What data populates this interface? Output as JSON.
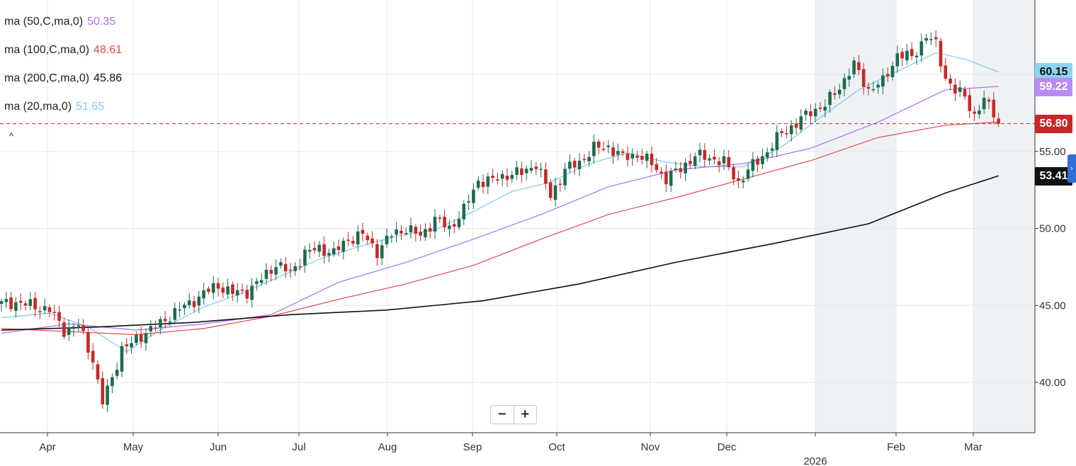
{
  "legend": [
    {
      "label": "ma (50,C,ma,0)",
      "value": "50.35",
      "color": "#a970f2"
    },
    {
      "label": "ma (100,C,ma,0)",
      "value": "48.61",
      "color": "#e8484e"
    },
    {
      "label": "ma (200,C,ma,0)",
      "value": "45.86",
      "color": "#111111"
    },
    {
      "label": "ma (20,ma,0)",
      "value": "51.65",
      "color": "#7ccbe9"
    }
  ],
  "collapse_glyph": "^",
  "zoom": {
    "minus": "−",
    "plus": "+"
  },
  "badges": [
    {
      "name": "ma20-badge",
      "value": "60.15",
      "bg": "#8fd3f0",
      "fg": "#111111"
    },
    {
      "name": "ma50-badge",
      "value": "59.22",
      "bg": "#b98af5",
      "fg": "#ffffff"
    },
    {
      "name": "last-price-badge",
      "value": "56.80",
      "bg": "#c62828",
      "fg": "#ffffff"
    },
    {
      "name": "ma200-badge",
      "value": "53.41",
      "bg": "#111111",
      "fg": "#ffffff"
    }
  ],
  "colors": {
    "up": "#1b6b4f",
    "down": "#c62828",
    "grid": "#e6e8eb",
    "shade": "#eef2f5",
    "price_line": "#c62828"
  },
  "chart_data": {
    "type": "candlestick",
    "x_tick_labels": [
      "Apr",
      "May",
      "Jun",
      "Jul",
      "Aug",
      "Sep",
      "Oct",
      "Nov",
      "Dec",
      "2026",
      "Feb",
      "Mar"
    ],
    "y_ticks": [
      40,
      45,
      50,
      55
    ],
    "y_tick_labels": [
      "40.00",
      "45.00",
      "50.00",
      "55.00"
    ],
    "ylim": [
      37,
      65
    ],
    "last_price": 56.8,
    "shaded_ranges": [
      [
        "Jan",
        "Feb"
      ],
      [
        "Mar",
        "Mar end"
      ]
    ],
    "close_path": [
      [
        0,
        45.1
      ],
      [
        3,
        45.2
      ],
      [
        6,
        45.0
      ],
      [
        10,
        44.7
      ],
      [
        13,
        43.4
      ],
      [
        16,
        43.7
      ],
      [
        19,
        41.5
      ],
      [
        20,
        40.0
      ],
      [
        21,
        38.7
      ],
      [
        23,
        40.3
      ],
      [
        25,
        42.2
      ],
      [
        27,
        42.5
      ],
      [
        30,
        43.3
      ],
      [
        33,
        43.8
      ],
      [
        36,
        44.6
      ],
      [
        39,
        45.1
      ],
      [
        42,
        45.8
      ],
      [
        45,
        46.3
      ],
      [
        48,
        45.8
      ],
      [
        51,
        45.9
      ],
      [
        54,
        46.7
      ],
      [
        57,
        47.7
      ],
      [
        60,
        47.1
      ],
      [
        63,
        48.4
      ],
      [
        66,
        48.7
      ],
      [
        69,
        48.4
      ],
      [
        72,
        49.3
      ],
      [
        75,
        49.6
      ],
      [
        78,
        48.5
      ],
      [
        81,
        49.6
      ],
      [
        84,
        50.0
      ],
      [
        87,
        49.5
      ],
      [
        90,
        50.6
      ],
      [
        93,
        50.0
      ],
      [
        96,
        51.2
      ],
      [
        99,
        53.1
      ],
      [
        102,
        53.1
      ],
      [
        105,
        53.5
      ],
      [
        108,
        53.6
      ],
      [
        111,
        54.2
      ],
      [
        114,
        52.1
      ],
      [
        117,
        53.8
      ],
      [
        120,
        54.3
      ],
      [
        123,
        55.2
      ],
      [
        126,
        55.3
      ],
      [
        129,
        54.6
      ],
      [
        132,
        54.8
      ],
      [
        135,
        54.2
      ],
      [
        138,
        53.2
      ],
      [
        141,
        53.9
      ],
      [
        144,
        54.7
      ],
      [
        147,
        54.6
      ],
      [
        150,
        54.3
      ],
      [
        153,
        53.0
      ],
      [
        156,
        54.1
      ],
      [
        159,
        55.0
      ],
      [
        162,
        56.2
      ],
      [
        165,
        56.8
      ],
      [
        168,
        57.6
      ],
      [
        171,
        58.0
      ],
      [
        174,
        59.2
      ],
      [
        177,
        60.6
      ],
      [
        180,
        59.0
      ],
      [
        183,
        59.5
      ],
      [
        186,
        61.3
      ],
      [
        189,
        61.1
      ],
      [
        192,
        62.5
      ],
      [
        194,
        61.9
      ],
      [
        196,
        59.8
      ],
      [
        198,
        58.9
      ],
      [
        200,
        58.6
      ],
      [
        202,
        57.3
      ],
      [
        204,
        58.3
      ],
      [
        206,
        57.6
      ],
      [
        207,
        56.8
      ]
    ],
    "series": [
      {
        "name": "ma (20,ma,0)",
        "color": "#7ccbe9",
        "points": [
          [
            0,
            44.2
          ],
          [
            10,
            44.5
          ],
          [
            18,
            43.6
          ],
          [
            26,
            42.0
          ],
          [
            34,
            43.6
          ],
          [
            42,
            44.9
          ],
          [
            50,
            45.8
          ],
          [
            58,
            46.9
          ],
          [
            66,
            48.0
          ],
          [
            74,
            48.8
          ],
          [
            82,
            49.5
          ],
          [
            90,
            49.9
          ],
          [
            98,
            51.1
          ],
          [
            106,
            52.4
          ],
          [
            114,
            53.0
          ],
          [
            122,
            54.2
          ],
          [
            130,
            54.9
          ],
          [
            138,
            54.3
          ],
          [
            146,
            54.0
          ],
          [
            154,
            54.0
          ],
          [
            162,
            55.3
          ],
          [
            170,
            57.2
          ],
          [
            178,
            59.0
          ],
          [
            186,
            60.2
          ],
          [
            194,
            61.4
          ],
          [
            200,
            61.0
          ],
          [
            207,
            60.15
          ]
        ]
      },
      {
        "name": "ma (50,C,ma,0)",
        "color": "#a970f2",
        "points": [
          [
            0,
            43.2
          ],
          [
            14,
            43.8
          ],
          [
            28,
            43.4
          ],
          [
            42,
            43.8
          ],
          [
            56,
            44.4
          ],
          [
            70,
            46.5
          ],
          [
            84,
            47.8
          ],
          [
            98,
            49.3
          ],
          [
            112,
            50.9
          ],
          [
            126,
            52.7
          ],
          [
            140,
            53.8
          ],
          [
            154,
            54.2
          ],
          [
            168,
            55.2
          ],
          [
            182,
            56.9
          ],
          [
            196,
            59.0
          ],
          [
            207,
            59.22
          ]
        ]
      },
      {
        "name": "ma (100,C,ma,0)",
        "color": "#e8484e",
        "points": [
          [
            0,
            43.5
          ],
          [
            14,
            43.3
          ],
          [
            28,
            43.1
          ],
          [
            42,
            43.5
          ],
          [
            56,
            44.3
          ],
          [
            70,
            45.4
          ],
          [
            84,
            46.4
          ],
          [
            98,
            47.6
          ],
          [
            112,
            49.3
          ],
          [
            126,
            50.9
          ],
          [
            140,
            52.0
          ],
          [
            154,
            53.2
          ],
          [
            168,
            54.4
          ],
          [
            182,
            55.9
          ],
          [
            196,
            56.7
          ],
          [
            207,
            56.9
          ]
        ]
      },
      {
        "name": "ma (200,C,ma,0)",
        "color": "#111111",
        "points": [
          [
            0,
            43.4
          ],
          [
            20,
            43.6
          ],
          [
            40,
            43.9
          ],
          [
            60,
            44.4
          ],
          [
            80,
            44.7
          ],
          [
            100,
            45.3
          ],
          [
            120,
            46.4
          ],
          [
            140,
            47.8
          ],
          [
            160,
            49.0
          ],
          [
            180,
            50.3
          ],
          [
            196,
            52.3
          ],
          [
            207,
            53.41
          ]
        ]
      }
    ]
  }
}
